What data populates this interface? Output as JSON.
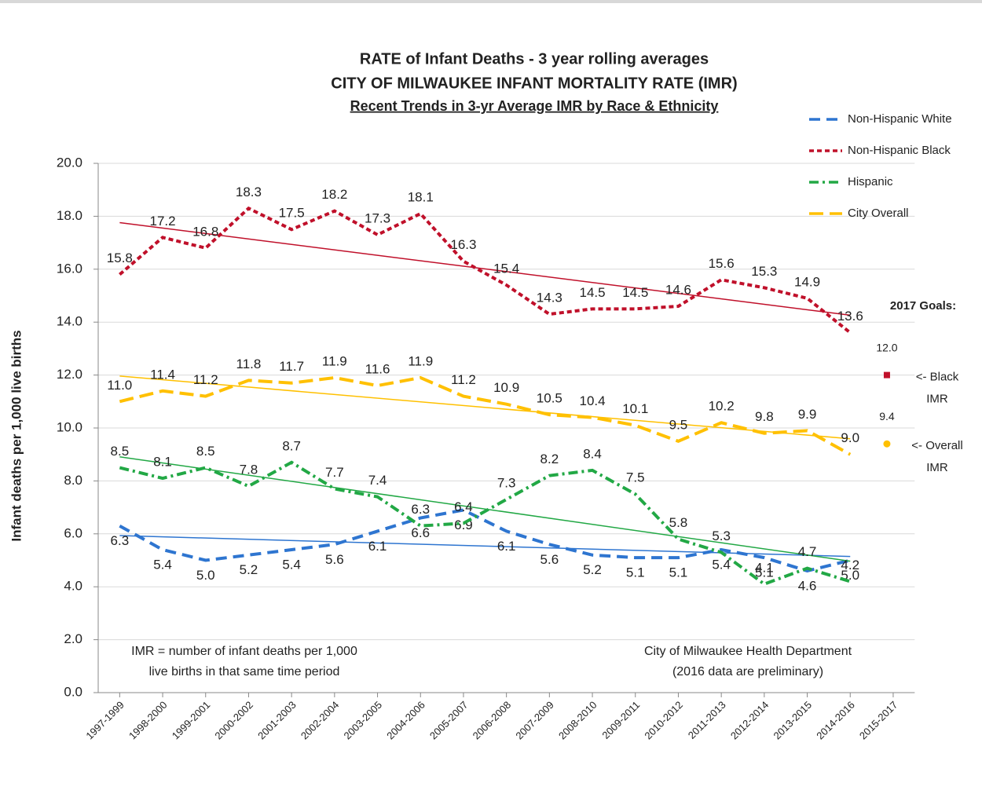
{
  "chart_data": {
    "type": "line",
    "title": "RATE of Infant Deaths - 3 year rolling averages",
    "subtitle": "CITY OF MILWAUKEE INFANT MORTALITY RATE (IMR)",
    "subtitle2": "Recent Trends in 3-yr Average IMR by Race & Ethnicity",
    "y_label": "Infant deaths per 1,000 live births",
    "categories": [
      "1997-1999",
      "1998-2000",
      "1999-2001",
      "2000-2002",
      "2001-2003",
      "2002-2004",
      "2003-2005",
      "2004-2006",
      "2005-2007",
      "2006-2008",
      "2007-2009",
      "2008-2010",
      "2009-2011",
      "2010-2012",
      "2011-2013",
      "2012-2014",
      "2013-2015",
      "2014-2016",
      "2015-2017"
    ],
    "ylim": [
      0,
      20
    ],
    "yticks": [
      {
        "value": 0,
        "label": "0.0"
      },
      {
        "value": 2,
        "label": "2.0"
      },
      {
        "value": 4,
        "label": "4.0"
      },
      {
        "value": 6,
        "label": "6.0"
      },
      {
        "value": 8,
        "label": "8.0"
      },
      {
        "value": 10,
        "label": "10.0"
      },
      {
        "value": 12,
        "label": "12.0"
      },
      {
        "value": 14,
        "label": "14.0"
      },
      {
        "value": 16,
        "label": "16.0"
      },
      {
        "value": 18,
        "label": "18.0"
      },
      {
        "value": 20,
        "label": "20.0"
      }
    ],
    "grid": true,
    "trendline": true,
    "series": [
      {
        "name": "Non-Hispanic White",
        "color": "#2e75d0",
        "dash": "14 8",
        "label_side": "below",
        "values": [
          6.3,
          5.4,
          5.0,
          5.2,
          5.4,
          5.6,
          6.1,
          6.6,
          6.9,
          6.1,
          5.6,
          5.2,
          5.1,
          5.1,
          5.4,
          5.1,
          4.6,
          5.0,
          null
        ],
        "value_labels": [
          "6.3",
          "5.4",
          "5.0",
          "5.2",
          "5.4",
          "5.6",
          "6.1",
          "6.6",
          "6.9",
          "6.1",
          "5.6",
          "5.2",
          "5.1",
          "5.1",
          "5.4",
          "5.1",
          "4.6",
          "5.0",
          null
        ]
      },
      {
        "name": "Non-Hispanic Black",
        "color": "#c0102a",
        "dash": "6 4",
        "label_side": "above",
        "values": [
          15.8,
          17.2,
          16.8,
          18.3,
          17.5,
          18.2,
          17.3,
          18.1,
          16.3,
          15.4,
          14.3,
          14.5,
          14.5,
          14.6,
          15.6,
          15.3,
          14.9,
          13.6,
          null
        ],
        "value_labels": [
          "15.8",
          "17.2",
          "16.8",
          "18.3",
          "17.5",
          "18.2",
          "17.3",
          "18.1",
          "16.3",
          "15.4",
          "14.3",
          "14.5",
          "14.5",
          "14.6",
          "15.6",
          "15.3",
          "14.9",
          "13.6",
          null
        ]
      },
      {
        "name": "Hispanic",
        "color": "#22a845",
        "dash": "12 5 3 5",
        "label_side": "above",
        "values": [
          8.5,
          8.1,
          8.5,
          7.8,
          8.7,
          7.7,
          7.4,
          6.3,
          6.4,
          7.3,
          8.2,
          8.4,
          7.5,
          5.8,
          5.3,
          4.1,
          4.7,
          4.2,
          null
        ],
        "value_labels": [
          "8.5",
          "8.1",
          "8.5",
          "7.8",
          "8.7",
          "7.7",
          "7.4",
          "6.3",
          "6.4",
          "7.3",
          "8.2",
          "8.4",
          "7.5",
          "5.8",
          "5.3",
          "4.1",
          "4.7",
          "4.2",
          null
        ]
      },
      {
        "name": "City Overall",
        "color": "#ffc000",
        "dash": "18 8",
        "label_side": "above",
        "values": [
          11.0,
          11.4,
          11.2,
          11.8,
          11.7,
          11.9,
          11.6,
          11.9,
          11.2,
          10.9,
          10.5,
          10.4,
          10.1,
          9.5,
          10.2,
          9.8,
          9.9,
          9.0,
          null
        ],
        "value_labels": [
          "11.0",
          "11.4",
          "11.2",
          "11.8",
          "11.7",
          "11.9",
          "11.6",
          "11.9",
          "11.2",
          "10.9",
          "10.5",
          "10.4",
          "10.1",
          "9.5",
          "10.2",
          "9.8",
          "9.9",
          "9.0",
          null
        ]
      }
    ],
    "goals": {
      "title": "2017 Goals:",
      "items": [
        {
          "value": 12.0,
          "value_label": "12.0",
          "color": "#c0102a",
          "shape": "square",
          "label": [
            "<- Black",
            "IMR"
          ]
        },
        {
          "value": 9.4,
          "value_label": "9.4",
          "color": "#ffc000",
          "shape": "circle",
          "label": [
            "<- Overall",
            "IMR"
          ]
        }
      ]
    },
    "annotations": [
      {
        "lines": [
          "IMR = number of infant deaths per 1,000",
          "live births in that same time period"
        ]
      },
      {
        "lines": [
          "City of Milwaukee Health Department",
          "(2016 data are preliminary)"
        ]
      }
    ]
  }
}
